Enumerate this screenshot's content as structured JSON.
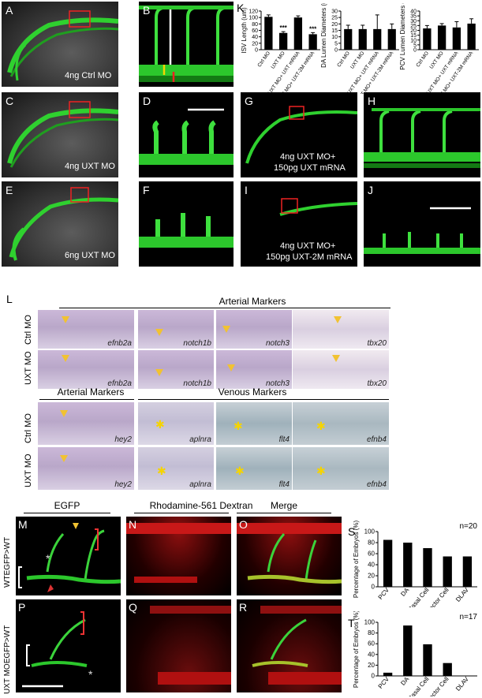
{
  "panels": {
    "A": {
      "letter": "A",
      "caption": "4ng Ctrl MO"
    },
    "B": {
      "letter": "B"
    },
    "C": {
      "letter": "C",
      "caption": "4ng UXT MO"
    },
    "D": {
      "letter": "D"
    },
    "E": {
      "letter": "E",
      "caption": "6ng UXT MO"
    },
    "F": {
      "letter": "F"
    },
    "G": {
      "letter": "G",
      "caption1": "4ng UXT MO+",
      "caption2": "150pg UXT mRNA"
    },
    "H": {
      "letter": "H"
    },
    "I": {
      "letter": "I",
      "caption1": "4ng UXT MO+",
      "caption2": "150pg UXT-2M mRNA"
    },
    "J": {
      "letter": "J"
    },
    "K": {
      "letter": "K"
    },
    "L": {
      "letter": "L"
    },
    "M": {
      "letter": "M"
    },
    "N": {
      "letter": "N"
    },
    "O": {
      "letter": "O"
    },
    "P": {
      "letter": "P"
    },
    "Q": {
      "letter": "Q"
    },
    "R": {
      "letter": "R"
    },
    "S": {
      "letter": "S"
    },
    "T": {
      "letter": "T"
    }
  },
  "ish": {
    "arterial_header": "Arterial Markers",
    "arterial_header2": "Arterial Markers",
    "venous_header": "Venous Markers",
    "row_ctrl": "Ctrl MO",
    "row_uxt": "UXT MO",
    "genes_top": [
      "efnb2a",
      "notch1b",
      "notch3",
      "tbx20"
    ],
    "genes_bottom": [
      "hey2",
      "aplnra",
      "flt4",
      "efnb4"
    ]
  },
  "bottom_headers": {
    "egfp": "EGFP",
    "dextran": "Rhodamine-561 Dextran",
    "merge": "Merge"
  },
  "row_labels": {
    "wt": "WTEGFP>WT",
    "uxt": "UXT MOEGFP>WT"
  },
  "chart_data": [
    {
      "type": "bar",
      "ylabel": "ISV Length (um)",
      "ylim": [
        0,
        120
      ],
      "yticks": [
        0,
        20,
        40,
        60,
        80,
        100,
        120
      ],
      "categories": [
        "Ctrl MO",
        "UXT MO",
        "UXT MO+ UXT mRNA",
        "UXT MO+ UXT-2M mRNA"
      ],
      "values": [
        102,
        52,
        100,
        48
      ],
      "errors": [
        6,
        4,
        5,
        5
      ],
      "significance": [
        "",
        "***",
        "",
        "***"
      ]
    },
    {
      "type": "bar",
      "ylabel": "DA Lumen Diameters (um)",
      "ylim": [
        0,
        30
      ],
      "yticks": [
        0,
        5,
        10,
        15,
        20,
        25,
        30
      ],
      "categories": [
        "Ctrl MO",
        "UXT MO",
        "UXT MO+ UXT mRNA",
        "UXT MO+ UXT-2M mRNA"
      ],
      "values": [
        16,
        16,
        16,
        16
      ],
      "errors": [
        3,
        3,
        11,
        4
      ],
      "significance": [
        "",
        "",
        "",
        ""
      ]
    },
    {
      "type": "bar",
      "ylabel": "PCV Lumen Diameters (um)",
      "ylim": [
        0,
        40
      ],
      "yticks": [
        0,
        5,
        10,
        15,
        20,
        25,
        30,
        35,
        40
      ],
      "categories": [
        "Ctrl MO",
        "UXT MO",
        "UXT MO+ UXT mRNA",
        "UXT MO+ UXT-2M mRNA"
      ],
      "values": [
        22,
        25,
        23,
        27
      ],
      "errors": [
        3,
        2,
        6,
        5
      ],
      "significance": [
        "",
        "",
        "",
        ""
      ]
    },
    {
      "type": "bar",
      "title": "n=20",
      "ylabel": "Percentage of Embryos (%)",
      "ylim": [
        0,
        100
      ],
      "yticks": [
        0,
        20,
        40,
        60,
        80,
        100
      ],
      "categories": [
        "PCV",
        "DA",
        "Basal Cell",
        "Connector Cell",
        "DLAV"
      ],
      "values": [
        85,
        80,
        70,
        55,
        55
      ]
    },
    {
      "type": "bar",
      "title": "n=17",
      "ylabel": "Percentage of Embryos (%)",
      "ylim": [
        0,
        100
      ],
      "yticks": [
        0,
        20,
        40,
        60,
        80,
        100
      ],
      "categories": [
        "PCV",
        "DA",
        "Basal Cell",
        "Connector Cell",
        "DLAV"
      ],
      "values": [
        6,
        94,
        59,
        24,
        0
      ]
    }
  ]
}
